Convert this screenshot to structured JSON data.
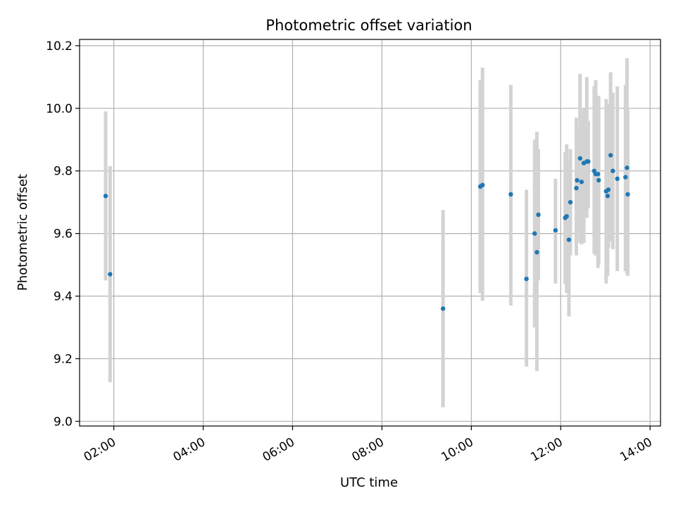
{
  "chart_data": {
    "type": "scatter",
    "title": "Photometric offset variation",
    "xlabel": "UTC time",
    "ylabel": "Photometric offset",
    "xlim": [
      "01:14",
      "14:14"
    ],
    "ylim": [
      8.985,
      10.22
    ],
    "x_ticks": [
      "02:00",
      "04:00",
      "06:00",
      "08:00",
      "10:00",
      "12:00",
      "14:00"
    ],
    "y_ticks": [
      "9.0",
      "9.2",
      "9.4",
      "9.6",
      "9.8",
      "10.0",
      "10.2"
    ],
    "grid": true,
    "colors": {
      "point": "#1f77b4",
      "errorbar": "#d3d3d3",
      "grid": "#b0b0b0",
      "axes": "#000000"
    },
    "series": [
      {
        "points": [
          {
            "time": "01:49",
            "y": 9.72,
            "ylow": 9.45,
            "yhigh": 9.99
          },
          {
            "time": "01:55",
            "y": 9.47,
            "ylow": 9.125,
            "yhigh": 9.815
          },
          {
            "time": "09:22",
            "y": 9.36,
            "ylow": 9.045,
            "yhigh": 9.675
          },
          {
            "time": "10:12",
            "y": 9.75,
            "ylow": 9.41,
            "yhigh": 10.09
          },
          {
            "time": "10:15",
            "y": 9.755,
            "ylow": 9.385,
            "yhigh": 10.13
          },
          {
            "time": "10:53",
            "y": 9.725,
            "ylow": 9.37,
            "yhigh": 10.075
          },
          {
            "time": "11:14",
            "y": 9.455,
            "ylow": 9.175,
            "yhigh": 9.74
          },
          {
            "time": "11:25",
            "y": 9.6,
            "ylow": 9.3,
            "yhigh": 9.9
          },
          {
            "time": "11:28",
            "y": 9.54,
            "ylow": 9.16,
            "yhigh": 9.925
          },
          {
            "time": "11:30",
            "y": 9.66,
            "ylow": 9.45,
            "yhigh": 9.87
          },
          {
            "time": "11:53",
            "y": 9.61,
            "ylow": 9.44,
            "yhigh": 9.775
          },
          {
            "time": "12:06",
            "y": 9.65,
            "ylow": 9.44,
            "yhigh": 9.86
          },
          {
            "time": "12:08",
            "y": 9.655,
            "ylow": 9.41,
            "yhigh": 9.885
          },
          {
            "time": "12:11",
            "y": 9.58,
            "ylow": 9.335,
            "yhigh": 9.83
          },
          {
            "time": "12:13",
            "y": 9.7,
            "ylow": 9.53,
            "yhigh": 9.87
          },
          {
            "time": "12:21",
            "y": 9.745,
            "ylow": 9.53,
            "yhigh": 9.97
          },
          {
            "time": "12:22",
            "y": 9.77,
            "ylow": 9.6,
            "yhigh": 9.935
          },
          {
            "time": "12:26",
            "y": 9.84,
            "ylow": 9.57,
            "yhigh": 10.11
          },
          {
            "time": "12:28",
            "y": 9.765,
            "ylow": 9.565,
            "yhigh": 9.975
          },
          {
            "time": "12:31",
            "y": 9.825,
            "ylow": 9.57,
            "yhigh": 10.0
          },
          {
            "time": "12:35",
            "y": 9.83,
            "ylow": 9.65,
            "yhigh": 10.1
          },
          {
            "time": "12:37",
            "y": 9.83,
            "ylow": 9.68,
            "yhigh": 9.96
          },
          {
            "time": "12:45",
            "y": 9.8,
            "ylow": 9.535,
            "yhigh": 10.07
          },
          {
            "time": "12:47",
            "y": 9.79,
            "ylow": 9.53,
            "yhigh": 10.09
          },
          {
            "time": "12:50",
            "y": 9.79,
            "ylow": 9.49,
            "yhigh": 10.04
          },
          {
            "time": "12:51",
            "y": 9.77,
            "ylow": 9.5,
            "yhigh": 10.04
          },
          {
            "time": "13:01",
            "y": 9.735,
            "ylow": 9.44,
            "yhigh": 10.03
          },
          {
            "time": "13:03",
            "y": 9.72,
            "ylow": 9.465,
            "yhigh": 9.97
          },
          {
            "time": "13:04",
            "y": 9.74,
            "ylow": 9.555,
            "yhigh": 10.015
          },
          {
            "time": "13:07",
            "y": 9.85,
            "ylow": 9.575,
            "yhigh": 10.115
          },
          {
            "time": "13:10",
            "y": 9.8,
            "ylow": 9.55,
            "yhigh": 10.05
          },
          {
            "time": "13:16",
            "y": 9.775,
            "ylow": 9.48,
            "yhigh": 10.07
          },
          {
            "time": "13:27",
            "y": 9.78,
            "ylow": 9.48,
            "yhigh": 10.075
          },
          {
            "time": "13:29",
            "y": 9.81,
            "ylow": 9.47,
            "yhigh": 10.16
          },
          {
            "time": "13:30",
            "y": 9.725,
            "ylow": 9.465,
            "yhigh": 9.995
          }
        ]
      }
    ]
  }
}
